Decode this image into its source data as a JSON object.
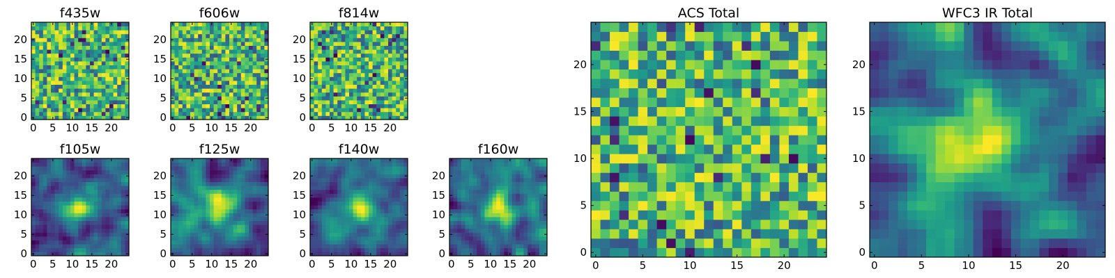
{
  "colormap": "viridis",
  "colors": {
    "viridis_stops": [
      "#440154",
      "#482878",
      "#3e4a89",
      "#31688e",
      "#26828e",
      "#1f9e89",
      "#35b779",
      "#6ece58",
      "#b5de2b",
      "#fde725"
    ],
    "frame": "#000000",
    "background": "#ffffff"
  },
  "chart_data": [
    {
      "type": "heatmap",
      "title": "f435w",
      "grid": false,
      "rows": 25,
      "cols": 25,
      "xlim": [
        0,
        24
      ],
      "ylim": [
        0,
        24
      ],
      "xticks": [
        0,
        5,
        10,
        15,
        20
      ],
      "yticks": [
        0,
        5,
        10,
        15,
        20
      ],
      "texture": "noise",
      "seed": 11
    },
    {
      "type": "heatmap",
      "title": "f606w",
      "grid": false,
      "rows": 25,
      "cols": 25,
      "xlim": [
        0,
        24
      ],
      "ylim": [
        0,
        24
      ],
      "xticks": [
        0,
        5,
        10,
        15,
        20
      ],
      "yticks": [
        0,
        5,
        10,
        15,
        20
      ],
      "texture": "noise",
      "seed": 23
    },
    {
      "type": "heatmap",
      "title": "f814w",
      "grid": false,
      "rows": 25,
      "cols": 25,
      "xlim": [
        0,
        24
      ],
      "ylim": [
        0,
        24
      ],
      "xticks": [
        0,
        5,
        10,
        15,
        20
      ],
      "yticks": [
        0,
        5,
        10,
        15,
        20
      ],
      "texture": "noise",
      "seed": 37
    },
    {
      "type": "heatmap",
      "title": "f105w",
      "grid": false,
      "rows": 25,
      "cols": 25,
      "xlim": [
        0,
        24
      ],
      "ylim": [
        0,
        24
      ],
      "xticks": [
        0,
        5,
        10,
        15,
        20
      ],
      "yticks": [
        0,
        5,
        10,
        15,
        20
      ],
      "texture": "smooth",
      "seed": 41
    },
    {
      "type": "heatmap",
      "title": "f125w",
      "grid": false,
      "rows": 25,
      "cols": 25,
      "xlim": [
        0,
        24
      ],
      "ylim": [
        0,
        24
      ],
      "xticks": [
        0,
        5,
        10,
        15,
        20
      ],
      "yticks": [
        0,
        5,
        10,
        15,
        20
      ],
      "texture": "smooth",
      "seed": 53
    },
    {
      "type": "heatmap",
      "title": "f140w",
      "grid": false,
      "rows": 25,
      "cols": 25,
      "xlim": [
        0,
        24
      ],
      "ylim": [
        0,
        24
      ],
      "xticks": [
        0,
        5,
        10,
        15,
        20
      ],
      "yticks": [
        0,
        5,
        10,
        15,
        20
      ],
      "texture": "smooth",
      "seed": 67
    },
    {
      "type": "heatmap",
      "title": "f160w",
      "grid": false,
      "rows": 25,
      "cols": 25,
      "xlim": [
        0,
        24
      ],
      "ylim": [
        0,
        24
      ],
      "xticks": [
        0,
        5,
        10,
        15,
        20
      ],
      "yticks": [
        0,
        5,
        10,
        15,
        20
      ],
      "texture": "smooth",
      "seed": 79
    },
    {
      "type": "heatmap",
      "title": "ACS Total",
      "grid": false,
      "rows": 25,
      "cols": 25,
      "xlim": [
        0,
        24
      ],
      "ylim": [
        0,
        24
      ],
      "xticks": [
        0,
        5,
        10,
        15,
        20
      ],
      "yticks": [
        0,
        5,
        10,
        15,
        20
      ],
      "texture": "noise",
      "seed": 97
    },
    {
      "type": "heatmap",
      "title": "WFC3 IR Total",
      "grid": false,
      "rows": 25,
      "cols": 25,
      "xlim": [
        0,
        24
      ],
      "ylim": [
        0,
        24
      ],
      "xticks": [
        0,
        5,
        10,
        15,
        20
      ],
      "yticks": [
        0,
        5,
        10,
        15,
        20
      ],
      "texture": "smooth",
      "seed": 101
    }
  ]
}
